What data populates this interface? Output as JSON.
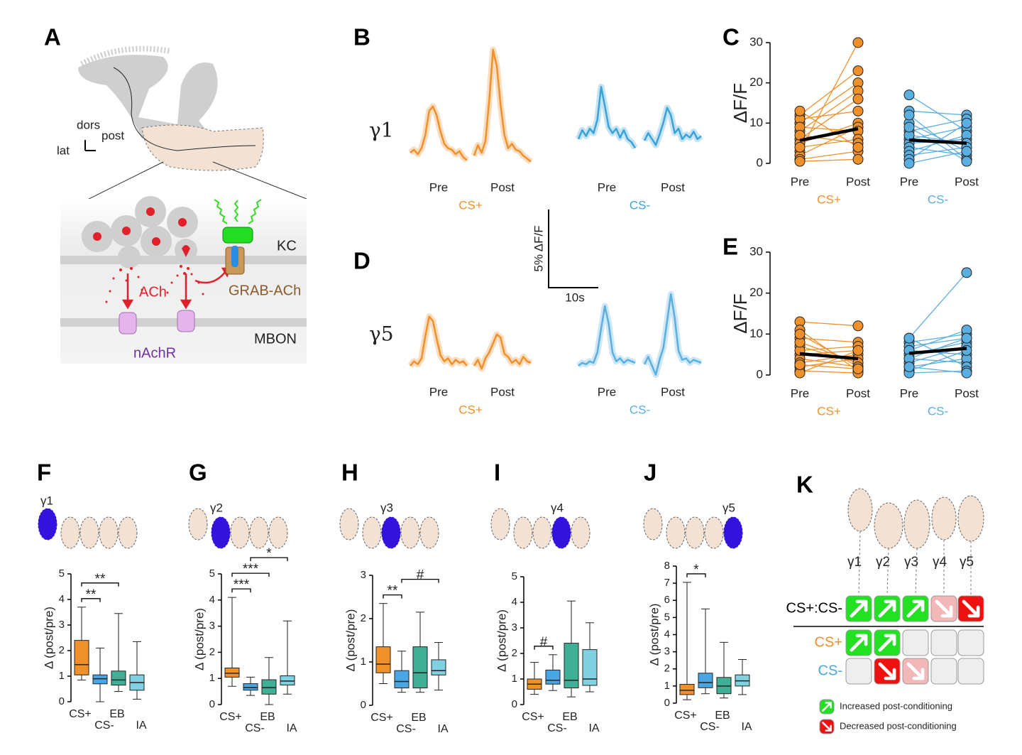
{
  "figure": {
    "panel_labels": [
      "A",
      "B",
      "C",
      "D",
      "E",
      "F",
      "G",
      "H",
      "I",
      "J",
      "K"
    ],
    "scale_bar": {
      "y_label": "5% ΔF/F",
      "x_label": "10s"
    }
  },
  "diagram": {
    "dors": "dors",
    "post": "post",
    "lat": "lat",
    "kc": "KC",
    "ach": "ACh",
    "grab": "GRAB-ACh",
    "mbon": "MBON",
    "nachr": "nAchR"
  },
  "chart_data": [
    {
      "type": "trace",
      "row_label": "γ1",
      "groups": [
        {
          "name": "CS+",
          "color": "#f0902a",
          "segments": [
            {
              "label": "Pre",
              "values": [
                0,
                0.2,
                -0.1,
                0.3,
                1.2,
                2.8,
                3.1,
                2.5,
                1.4,
                0.6,
                0.3,
                0.2,
                -0.1,
                0.1,
                -0.3,
                -0.5
              ]
            },
            {
              "label": "Post",
              "values": [
                -0.2,
                0.5,
                0,
                0.8,
                3.5,
                6.9,
                5.8,
                3.2,
                1.2,
                0.3,
                0.6,
                0.2,
                0.1,
                -0.2,
                -0.4,
                -0.6
              ]
            }
          ]
        },
        {
          "name": "CS-",
          "color": "#3aa2d8",
          "segments": [
            {
              "label": "Pre",
              "values": [
                0.2,
                0.8,
                0.4,
                0.9,
                0.6,
                1.5,
                3.7,
                2.4,
                1.0,
                0.6,
                0.9,
                0.3,
                0.8,
                0.2,
                0,
                -0.4
              ]
            },
            {
              "label": "Post",
              "values": [
                0.1,
                0.6,
                0.2,
                -0.2,
                0.5,
                1.3,
                2.3,
                1.8,
                0.6,
                0.9,
                0.2,
                0.5,
                0.3,
                0.7,
                0.2,
                0.4
              ]
            }
          ]
        }
      ]
    },
    {
      "type": "trace",
      "row_label": "γ5",
      "groups": [
        {
          "name": "CS+",
          "color": "#f0902a",
          "segments": [
            {
              "label": "Pre",
              "values": [
                0,
                0.3,
                0.1,
                0.5,
                2.0,
                3.3,
                3.0,
                1.8,
                0.7,
                0.3,
                0.5,
                0.1,
                0.4,
                0.2,
                0.3,
                0
              ]
            },
            {
              "label": "Post",
              "values": [
                0,
                0.4,
                -0.2,
                0.5,
                0.9,
                1.5,
                2.1,
                1.9,
                0.8,
                0.6,
                0.2,
                0.4,
                0.1,
                0.6,
                0.3,
                0.2
              ]
            }
          ]
        },
        {
          "name": "CS-",
          "color": "#5aaee0",
          "segments": [
            {
              "label": "Pre",
              "values": [
                0,
                0.2,
                0.1,
                0.3,
                0.2,
                0.9,
                2.5,
                4.0,
                2.8,
                0.9,
                0.3,
                0.5,
                0.2,
                0.4,
                0.3,
                0.2
              ]
            },
            {
              "label": "Post",
              "values": [
                0.1,
                0.6,
                0,
                -0.6,
                0.4,
                1.2,
                3.0,
                4.8,
                3.2,
                1.0,
                0.4,
                0.5,
                0.2,
                0.4,
                0.3,
                0.2
              ]
            }
          ]
        }
      ]
    },
    {
      "type": "paired",
      "y_label": "ΔF/F",
      "ylim": [
        0,
        30
      ],
      "yticks": [
        0,
        10,
        20,
        30
      ],
      "groups": [
        {
          "name": "CS+",
          "color": "#f0902a",
          "categories": [
            "Pre",
            "Post"
          ],
          "pairs": [
            [
              3,
              30
            ],
            [
              12,
              23
            ],
            [
              10,
              20
            ],
            [
              8,
              18
            ],
            [
              6,
              16
            ],
            [
              11,
              13
            ],
            [
              5,
              10
            ],
            [
              2,
              9
            ],
            [
              9,
              8
            ],
            [
              4,
              6
            ],
            [
              7,
              5
            ],
            [
              1,
              3
            ],
            [
              13,
              4
            ],
            [
              0.5,
              1
            ]
          ],
          "mean": [
            5.7,
            8.6
          ]
        },
        {
          "name": "CS-",
          "color": "#5aaee0",
          "categories": [
            "Pre",
            "Post"
          ],
          "pairs": [
            [
              17,
              8
            ],
            [
              13,
              12
            ],
            [
              10,
              3
            ],
            [
              8,
              11
            ],
            [
              6,
              9
            ],
            [
              5,
              6
            ],
            [
              4,
              2
            ],
            [
              3,
              7
            ],
            [
              12,
              1
            ],
            [
              7,
              5
            ],
            [
              2,
              4
            ],
            [
              1,
              10
            ],
            [
              9,
              0.5
            ],
            [
              0,
              3
            ]
          ],
          "mean": [
            5.8,
            5
          ]
        }
      ]
    },
    {
      "type": "paired",
      "y_label": "ΔF/F",
      "ylim": [
        0,
        30
      ],
      "yticks": [
        0,
        10,
        20,
        30
      ],
      "groups": [
        {
          "name": "CS+",
          "color": "#f0902a",
          "categories": [
            "Pre",
            "Post"
          ],
          "pairs": [
            [
              13,
              12
            ],
            [
              9,
              8
            ],
            [
              7,
              3
            ],
            [
              5,
              6
            ],
            [
              4,
              2
            ],
            [
              3,
              5
            ],
            [
              2,
              4
            ],
            [
              11,
              1
            ],
            [
              6,
              7
            ],
            [
              1,
              0.5
            ],
            [
              8,
              3
            ],
            [
              0.5,
              6
            ],
            [
              10,
              2
            ],
            [
              2.5,
              1.5
            ]
          ],
          "mean": [
            5.2,
            4
          ]
        },
        {
          "name": "CS-",
          "color": "#5aaee0",
          "categories": [
            "Pre",
            "Post"
          ],
          "pairs": [
            [
              9,
              25
            ],
            [
              8,
              10
            ],
            [
              7,
              9
            ],
            [
              6,
              5
            ],
            [
              5,
              8
            ],
            [
              4,
              3
            ],
            [
              3,
              7
            ],
            [
              2,
              4
            ],
            [
              1,
              6
            ],
            [
              9,
              2
            ],
            [
              6,
              11
            ],
            [
              0.5,
              1
            ],
            [
              4,
              9
            ],
            [
              2,
              0.5
            ]
          ],
          "mean": [
            5.3,
            6.5
          ]
        }
      ]
    },
    {
      "type": "box",
      "region": "γ1",
      "y_label": "Δ (post/pre)",
      "ylim": [
        0,
        5
      ],
      "yticks": [
        0,
        1,
        2,
        3,
        4,
        5
      ],
      "categories": [
        "CS+",
        "CS-",
        "EB",
        "IA"
      ],
      "colors": [
        "#f0902a",
        "#4aa6e2",
        "#3fb096",
        "#80d2e2"
      ],
      "boxes": [
        {
          "min": 0.85,
          "q1": 1.05,
          "median": 1.45,
          "q3": 2.4,
          "max": 3.7
        },
        {
          "min": 0,
          "q1": 0.7,
          "median": 0.9,
          "q3": 1.05,
          "max": 2.1
        },
        {
          "min": 0.4,
          "q1": 0.65,
          "median": 0.85,
          "q3": 1.2,
          "max": 3.45
        },
        {
          "min": 0.1,
          "q1": 0.45,
          "median": 0.75,
          "q3": 1.05,
          "max": 2.35
        }
      ],
      "significance": [
        {
          "from": 0,
          "to": 1,
          "label": "**"
        },
        {
          "from": 0,
          "to": 2,
          "label": "**"
        }
      ]
    },
    {
      "type": "box",
      "region": "γ2",
      "y_label": "Δ (post/pre)",
      "ylim": [
        0,
        5
      ],
      "yticks": [
        0,
        1,
        2,
        3,
        4,
        5
      ],
      "categories": [
        "CS+",
        "CS-",
        "EB",
        "IA"
      ],
      "colors": [
        "#f0902a",
        "#4aa6e2",
        "#3fb096",
        "#80d2e2"
      ],
      "boxes": [
        {
          "min": 0.7,
          "q1": 1.05,
          "median": 1.2,
          "q3": 1.4,
          "max": 4.1
        },
        {
          "min": 0.35,
          "q1": 0.55,
          "median": 0.65,
          "q3": 0.8,
          "max": 1.05
        },
        {
          "min": 0,
          "q1": 0.4,
          "median": 0.65,
          "q3": 0.95,
          "max": 1.8
        },
        {
          "min": 0.4,
          "q1": 0.75,
          "median": 0.9,
          "q3": 1.1,
          "max": 3.2
        }
      ],
      "significance": [
        {
          "from": 0,
          "to": 1,
          "label": "***"
        },
        {
          "from": 0,
          "to": 2,
          "label": "***"
        },
        {
          "from": 1,
          "to": 3,
          "label": "*"
        }
      ]
    },
    {
      "type": "box",
      "region": "γ3",
      "y_label": "Δ (post/pre)",
      "ylim": [
        0,
        3
      ],
      "yticks": [
        0,
        1,
        2,
        3
      ],
      "categories": [
        "CS+",
        "CS-",
        "EB",
        "IA"
      ],
      "colors": [
        "#f0902a",
        "#4aa6e2",
        "#3fb096",
        "#80d2e2"
      ],
      "boxes": [
        {
          "min": 0.5,
          "q1": 0.75,
          "median": 0.95,
          "q3": 1.35,
          "max": 2.35
        },
        {
          "min": 0.3,
          "q1": 0.4,
          "median": 0.55,
          "q3": 0.8,
          "max": 1.25
        },
        {
          "min": 0.3,
          "q1": 0.4,
          "median": 0.75,
          "q3": 1.35,
          "max": 2.15
        },
        {
          "min": 0.35,
          "q1": 0.7,
          "median": 0.8,
          "q3": 1.05,
          "max": 1.45
        }
      ],
      "significance": [
        {
          "from": 0,
          "to": 1,
          "label": "**"
        },
        {
          "from": 1,
          "to": 3,
          "label": "#"
        }
      ]
    },
    {
      "type": "box",
      "region": "γ4",
      "y_label": "Δ (post/pre)",
      "ylim": [
        0,
        5
      ],
      "yticks": [
        0,
        1,
        2,
        3,
        4,
        5
      ],
      "categories": [
        "CS+",
        "CS-",
        "EB",
        "IA"
      ],
      "colors": [
        "#f0902a",
        "#4aa6e2",
        "#3fb096",
        "#80d2e2"
      ],
      "boxes": [
        {
          "min": 0.4,
          "q1": 0.6,
          "median": 0.8,
          "q3": 1.0,
          "max": 1.65
        },
        {
          "min": 0.55,
          "q1": 0.8,
          "median": 0.95,
          "q3": 1.35,
          "max": 1.95
        },
        {
          "min": 0.3,
          "q1": 0.65,
          "median": 0.95,
          "q3": 2.4,
          "max": 4.05
        },
        {
          "min": 0.5,
          "q1": 0.75,
          "median": 1.0,
          "q3": 2.15,
          "max": 3.2
        }
      ],
      "significance": [
        {
          "from": 0,
          "to": 1,
          "label": "#"
        }
      ]
    },
    {
      "type": "box",
      "region": "γ5",
      "y_label": "Δ (post/pre)",
      "ylim": [
        0,
        8
      ],
      "yticks": [
        0,
        1,
        2,
        3,
        4,
        5,
        6,
        7,
        8
      ],
      "categories": [
        "CS+",
        "CS-",
        "EB",
        "IA"
      ],
      "colors": [
        "#f0902a",
        "#4aa6e2",
        "#3fb096",
        "#80d2e2"
      ],
      "boxes": [
        {
          "min": 0.2,
          "q1": 0.5,
          "median": 0.75,
          "q3": 1.1,
          "max": 7.05
        },
        {
          "min": 0.55,
          "q1": 0.9,
          "median": 1.2,
          "q3": 1.75,
          "max": 5.5
        },
        {
          "min": 0.3,
          "q1": 0.55,
          "median": 1.0,
          "q3": 1.5,
          "max": 3.55
        },
        {
          "min": 0.5,
          "q1": 1.0,
          "median": 1.3,
          "q3": 1.65,
          "max": 2.55
        }
      ],
      "significance": [
        {
          "from": 0,
          "to": 1,
          "label": "*"
        }
      ]
    },
    {
      "type": "summary",
      "regions": [
        "γ1",
        "γ2",
        "γ3",
        "γ4",
        "γ5"
      ],
      "rows": [
        {
          "label": "CS+:CS-",
          "color": "#000000",
          "cells": [
            "up",
            "up",
            "up",
            "down-light",
            "down"
          ]
        },
        {
          "label": "CS+",
          "color": "#f0902a",
          "cells": [
            "up",
            "up",
            "none",
            "none",
            "none"
          ]
        },
        {
          "label": "CS-",
          "color": "#4aa6e2",
          "cells": [
            "none",
            "down",
            "down-light",
            "none",
            "none"
          ]
        }
      ],
      "legend": [
        {
          "kind": "up",
          "label": "Increased post-conditioning"
        },
        {
          "kind": "down",
          "label": "Decreased post-conditioning"
        }
      ]
    }
  ]
}
